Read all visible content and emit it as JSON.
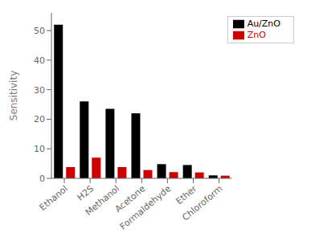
{
  "chart_data": {
    "type": "bar",
    "categories": [
      "Ethanol",
      "H2S",
      "Methanol",
      "Acetone",
      "Formaldehyde",
      "Ether",
      "Chloroform"
    ],
    "series": [
      {
        "name": "Au/ZnO",
        "color": "#000000",
        "values": [
          52,
          26,
          23.5,
          22,
          4.8,
          4.5,
          1.0
        ]
      },
      {
        "name": "ZnO",
        "color": "#cc0000",
        "values": [
          3.8,
          7.0,
          3.8,
          2.8,
          2.1,
          2.0,
          0.9
        ]
      }
    ],
    "ylabel": "Sensitivity",
    "ylim": [
      0,
      56
    ],
    "yticks": [
      0,
      10,
      20,
      30,
      40,
      50
    ],
    "grid": false,
    "legend": "upper right"
  }
}
